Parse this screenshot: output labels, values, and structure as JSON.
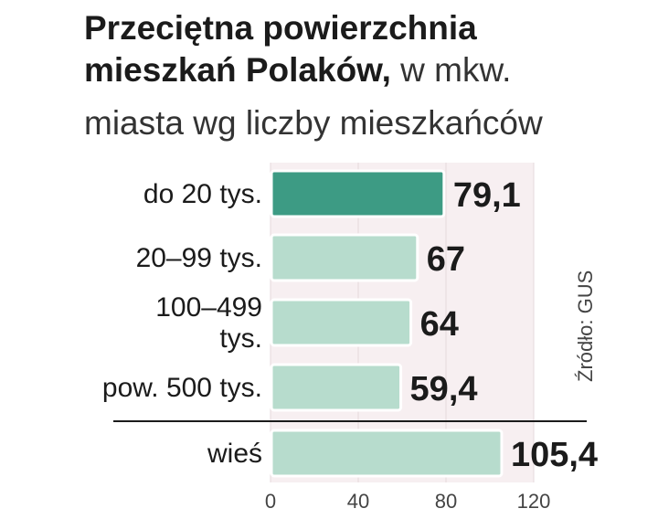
{
  "header": {
    "title_bold": "Przeciętna powierzchnia",
    "title_bold_2": "mieszkań Polaków,",
    "title_unit": "w mkw.",
    "subtitle": "miasta wg liczby mieszkańców"
  },
  "source": "Źródło: GUS",
  "colors": {
    "highlight": "#3d9b84",
    "bar": "#b7dccd",
    "plot_bg": "#f7eff1",
    "bar_stroke": "#ffffff"
  },
  "chart_data": {
    "type": "bar",
    "orientation": "horizontal",
    "categories": [
      [
        "do 20 tys."
      ],
      [
        "20–99 tys."
      ],
      [
        "100–499",
        "tys."
      ],
      [
        "pow. 500 tys."
      ],
      [
        "wieś"
      ]
    ],
    "values": [
      79.1,
      67,
      64,
      59.4,
      105.4
    ],
    "value_labels": [
      "79,1",
      "67",
      "64",
      "59,4",
      "105,4"
    ],
    "highlighted_index": 0,
    "xlim": [
      0,
      120
    ],
    "x_ticks": [
      0,
      40,
      80,
      120
    ],
    "grid": true
  }
}
